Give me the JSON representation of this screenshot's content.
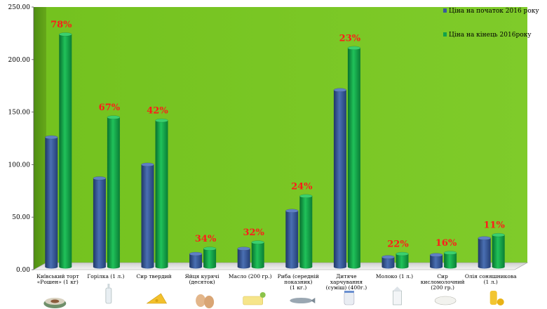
{
  "chart_data": {
    "type": "bar",
    "ylim": [
      0,
      250
    ],
    "yticks": [
      "0.00",
      "50.00",
      "100.00",
      "150.00",
      "200.00",
      "250.00"
    ],
    "categories": [
      [
        "Київський торт",
        "«Рошен» (1 кг)"
      ],
      [
        "Горілка (1 л.)"
      ],
      [
        "Сир твердий"
      ],
      [
        "Яйця курячі",
        "(десяток)"
      ],
      [
        "Масло (200 гр.)"
      ],
      [
        "Риба (середній",
        "показник)",
        "(1 кг.)"
      ],
      [
        "Дитяче",
        "харчування",
        "(суміш) (400г.)"
      ],
      [
        "Молоко (1 л.)"
      ],
      [
        "Сир",
        "кисломолочний",
        "(200 гр.)"
      ],
      [
        "Олія соняшникова",
        "(1 л.)"
      ]
    ],
    "series": [
      {
        "name": "Ціна на початок 2016 року",
        "color": "#3a5a9a",
        "values": [
          126,
          87,
          100,
          15,
          20,
          56,
          171,
          12,
          14,
          30
        ]
      },
      {
        "name": "Ціна на кінець 2016року",
        "color": "#12a24a",
        "values": [
          224,
          145,
          142,
          20,
          26,
          70,
          211,
          15,
          16,
          33
        ]
      }
    ],
    "annotations": [
      "78%",
      "67%",
      "42%",
      "34%",
      "32%",
      "24%",
      "23%",
      "22%",
      "16%",
      "11%"
    ],
    "grid": false,
    "legend_position": "top-right"
  },
  "icons": [
    "cake-icon",
    "vodka-bottle-icon",
    "cheese-icon",
    "eggs-icon",
    "butter-icon",
    "fish-icon",
    "baby-formula-icon",
    "milk-icon",
    "cottage-cheese-icon",
    "sunflower-oil-icon"
  ]
}
